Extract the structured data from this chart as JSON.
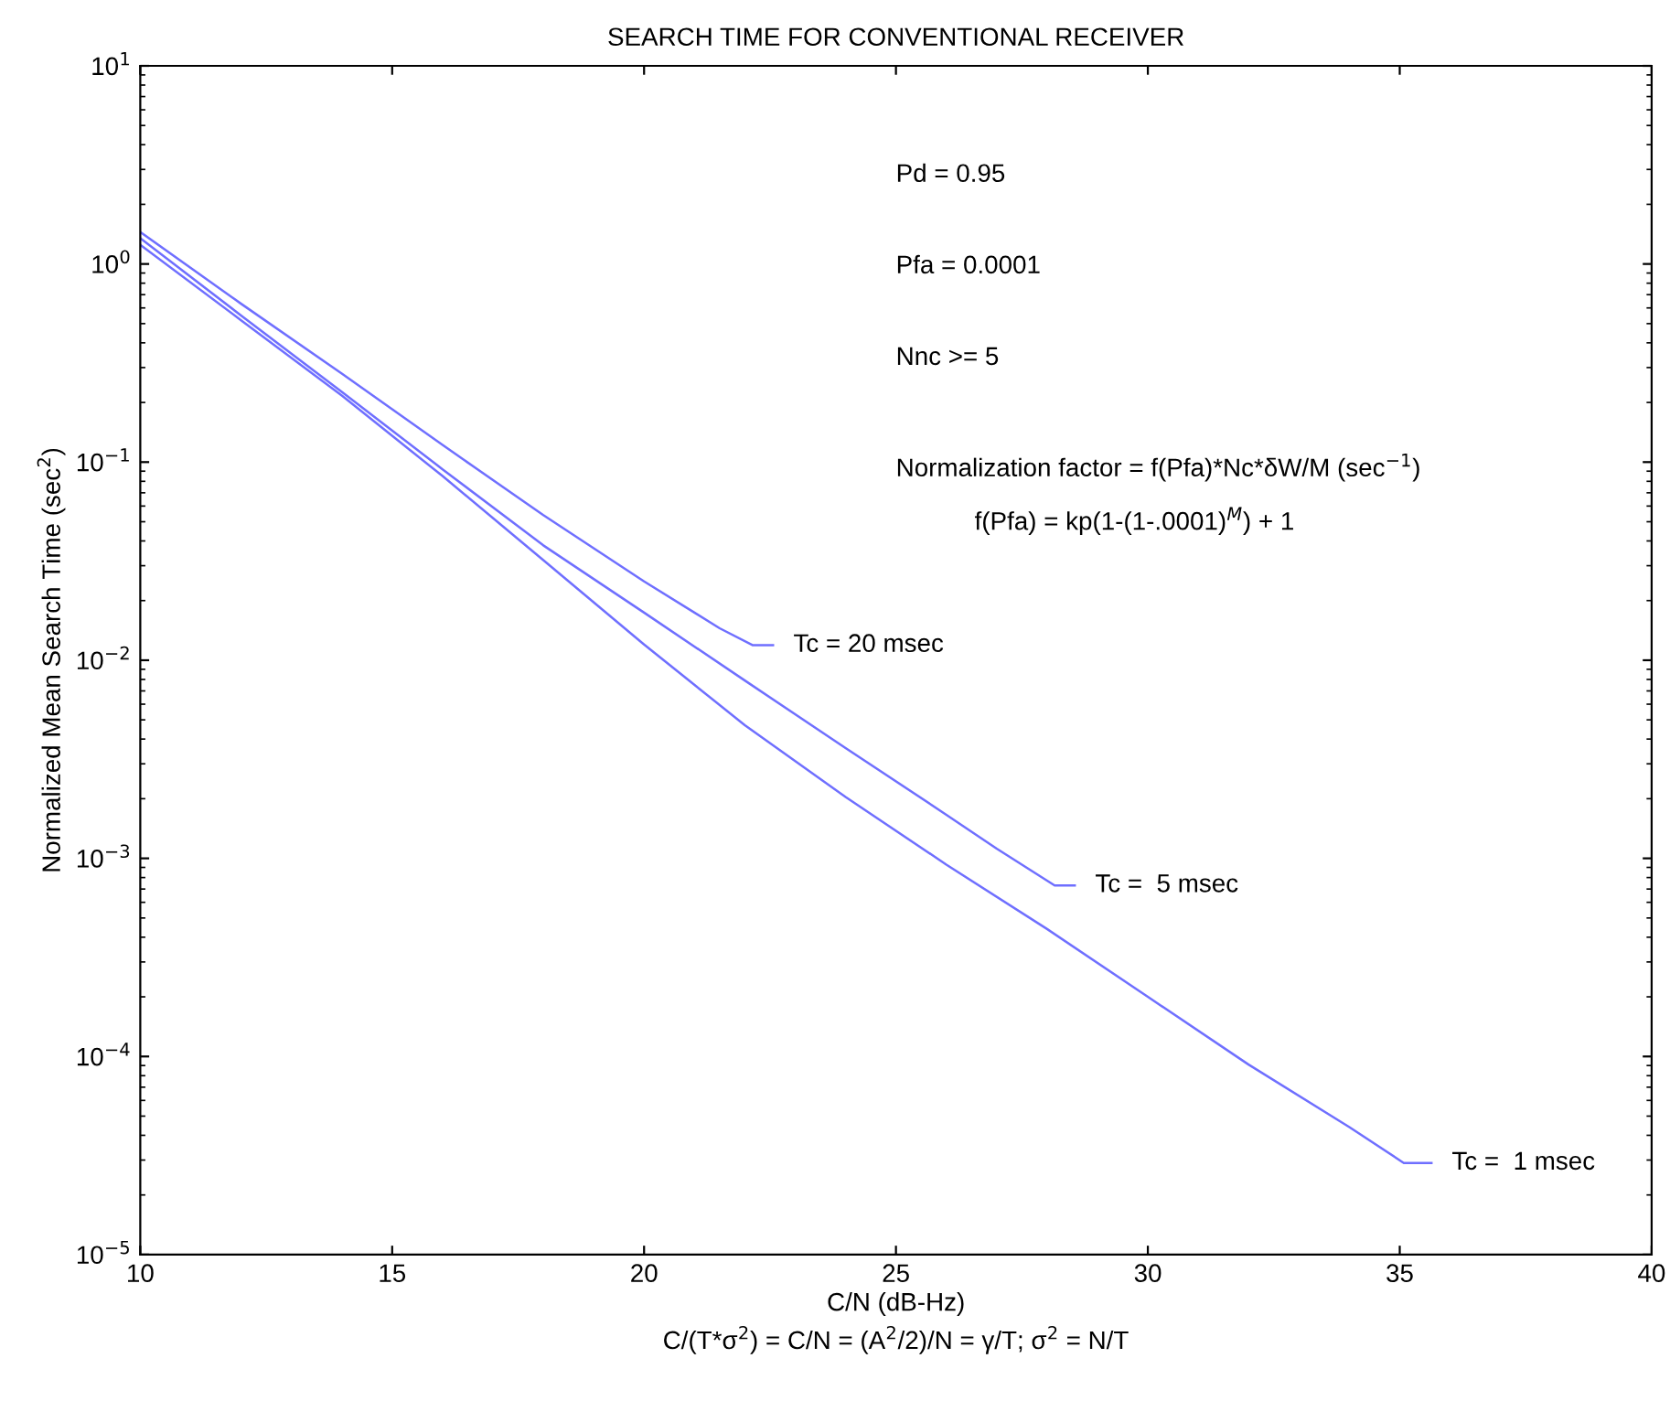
{
  "chart_data": {
    "type": "line",
    "title": "SEARCH TIME FOR CONVENTIONAL RECEIVER",
    "xlabel": "C/N (dB-Hz)",
    "ylabel": "Normalized Mean Search Time (sec$^{2}$)",
    "log": "y",
    "xlim": [
      10,
      40
    ],
    "ylim": [
      1e-05,
      10
    ],
    "xticks": [
      10,
      15,
      20,
      25,
      30,
      35,
      40
    ],
    "yticks": [
      {
        "value": 1e-05,
        "label": "10$^{−5}$"
      },
      {
        "value": 0.0001,
        "label": "10$^{−4}$"
      },
      {
        "value": 0.001,
        "label": "10$^{−3}$"
      },
      {
        "value": 0.01,
        "label": "10$^{−2}$"
      },
      {
        "value": 0.1,
        "label": "10$^{−1}$"
      },
      {
        "value": 1,
        "label": "10$^{0}$"
      },
      {
        "value": 10,
        "label": "10$^{1}$"
      }
    ],
    "marker": "none",
    "line_style": "solid",
    "series": [
      {
        "color": "#6f6fff",
        "x": [
          10,
          12,
          14,
          16,
          18,
          20,
          21,
          21.5,
          22.16,
          22.56
        ],
        "values": [
          1.45,
          0.63,
          0.28,
          0.122,
          0.054,
          0.025,
          0.0174,
          0.0145,
          0.0119,
          0.0119
        ]
      },
      {
        "color": "#6f6fff",
        "x": [
          10,
          12,
          14,
          16,
          18,
          20,
          22,
          24,
          26,
          27,
          28.15,
          28.55
        ],
        "values": [
          1.35,
          0.55,
          0.226,
          0.092,
          0.038,
          0.0174,
          0.0079,
          0.0036,
          0.00166,
          0.00112,
          0.00073,
          0.00073
        ]
      },
      {
        "color": "#6f6fff",
        "x": [
          10,
          12,
          14,
          16,
          18,
          20,
          22,
          24,
          26,
          28,
          30,
          32,
          34,
          35.08,
          35.63
        ],
        "values": [
          1.25,
          0.52,
          0.217,
          0.085,
          0.032,
          0.012,
          0.0047,
          0.00204,
          0.00093,
          0.00044,
          0.0002,
          9.1e-05,
          4.4e-05,
          2.9e-05,
          2.9e-05
        ]
      }
    ],
    "annotations": [
      "Pd = 0.95",
      "Pfa = 0.0001",
      "Nnc >= 5",
      "Normalization factor = f(Pfa)*Nc*δW/M (sec$^{−1}$)",
      "f(Pfa) = kp(1-(1-.0001)$^{M}$) + 1",
      "C/(T*σ$^{2}$) = C/N = (A$^{2}$/2)/N = γ/T; σ$^{2}$ = N/T",
      {
        "text": "Tc = 20 msec",
        "x": 22.56,
        "y": 0.0119
      },
      {
        "text": "Tc =  5 msec",
        "x": 28.55,
        "y": 0.00073
      },
      {
        "text": "Tc =  1 msec",
        "x": 35.63,
        "y": 2.9e-05
      }
    ]
  }
}
